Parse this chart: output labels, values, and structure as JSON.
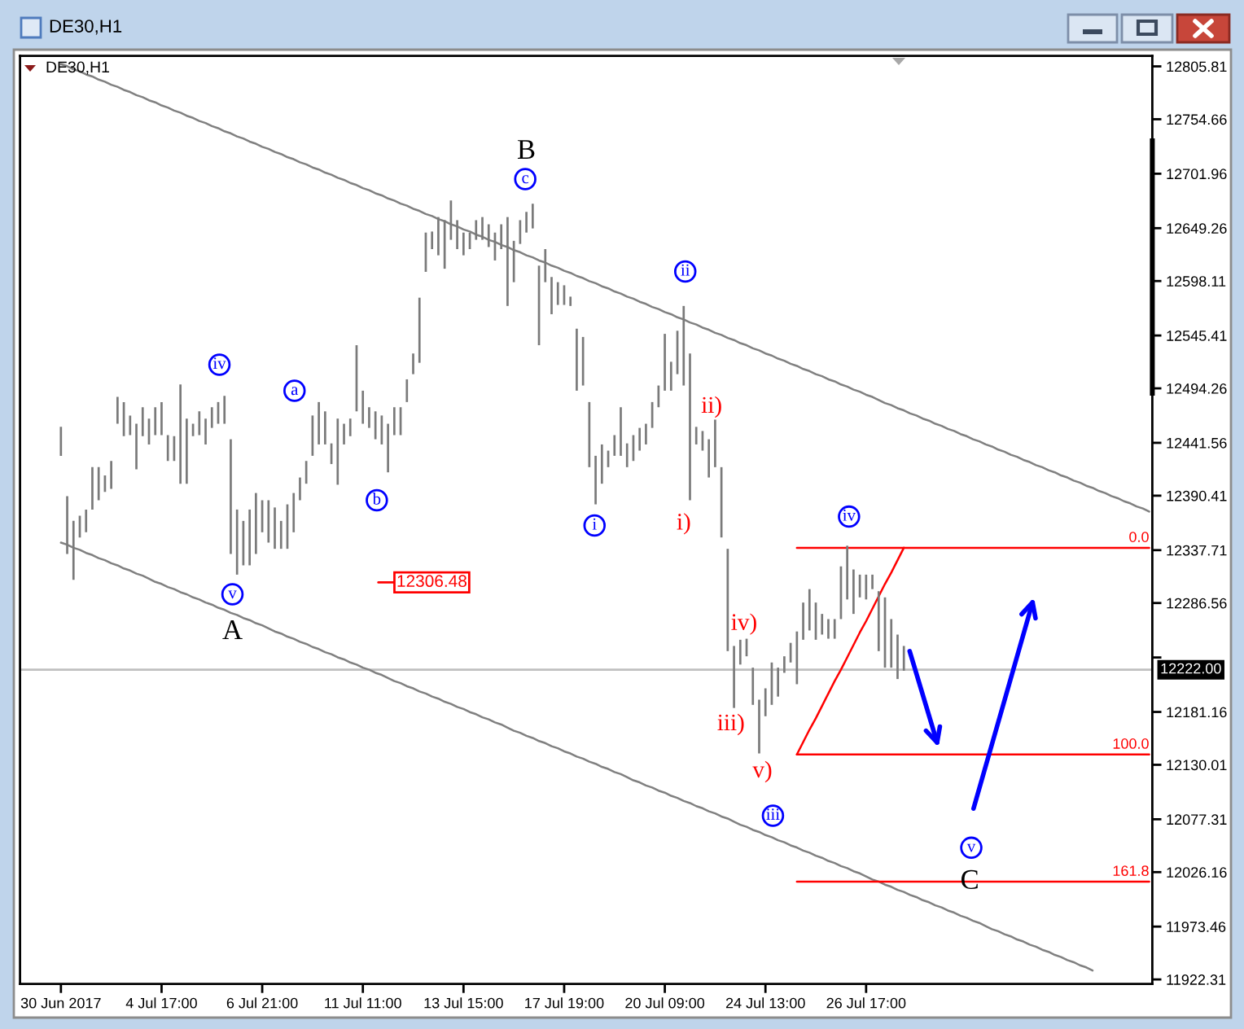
{
  "chart_data": {
    "type": "bar",
    "title": "DE30,H1",
    "subtitle": "DE30,H1",
    "categories": [
      "30 Jun 2017",
      null,
      null,
      null,
      null,
      null,
      null,
      null,
      null,
      null,
      null,
      null,
      null,
      null,
      null,
      null,
      "4 Jul 17:00",
      null,
      null,
      null,
      null,
      null,
      null,
      null,
      null,
      null,
      null,
      null,
      null,
      null,
      null,
      null,
      "6 Jul 21:00",
      null,
      null,
      null,
      null,
      null,
      null,
      null,
      null,
      null,
      null,
      null,
      null,
      null,
      null,
      null,
      "11 Jul 11:00",
      null,
      null,
      null,
      null,
      null,
      null,
      null,
      null,
      null,
      null,
      null,
      null,
      null,
      null,
      null,
      "13 Jul 15:00",
      null,
      null,
      null,
      null,
      null,
      null,
      null,
      null,
      null,
      null,
      null,
      null,
      null,
      null,
      null,
      "17 Jul 19:00",
      null,
      null,
      null,
      null,
      null,
      null,
      null,
      null,
      null,
      null,
      null,
      null,
      null,
      null,
      null,
      "20 Jul 09:00",
      null,
      null,
      null,
      null,
      null,
      null,
      null,
      null,
      null,
      null,
      null,
      null,
      null,
      null,
      null,
      "24 Jul 13:00",
      null,
      null,
      null,
      null,
      null,
      null,
      null,
      null,
      null,
      null,
      null,
      null,
      null,
      null,
      null,
      "26 Jul 17:00",
      null,
      null,
      null,
      null,
      null,
      null,
      null,
      null,
      null,
      null,
      null,
      null,
      null,
      null,
      null,
      null,
      null,
      null,
      null,
      null,
      null,
      null,
      null,
      null,
      null,
      null,
      null,
      null,
      null,
      null,
      null,
      null,
      null,
      null,
      null,
      null,
      null,
      null,
      null,
      null,
      null,
      null,
      null,
      null,
      null
    ],
    "series": [
      {
        "color": "#7a7a7a",
        "base": [
          12429,
          12334,
          12309,
          12350,
          12355,
          12377,
          12386,
          12394,
          12397,
          12460,
          12448,
          12449,
          12416,
          12448,
          12440,
          12449,
          12449,
          12424,
          12424,
          12402,
          12402,
          12448,
          12449,
          12440,
          12456,
          12460,
          12460,
          12334,
          12314,
          12323,
          12323,
          12334,
          12355,
          12345,
          12339,
          12339,
          12339,
          12355,
          12386,
          12402,
          12429,
          12440,
          12440,
          12421,
          12401,
          12440,
          12448,
          12472,
          12460,
          12456,
          12445,
          12440,
          12413,
          12449,
          12449,
          12481,
          12508,
          12519,
          12607,
          12629,
          12623,
          12610,
          12638,
          12629,
          12623,
          12629,
          12638,
          12638,
          12631,
          12618,
          12629,
          12574,
          12597,
          12634,
          12645,
          12649,
          12536,
          12597,
          12566,
          12575,
          12575,
          12574,
          12492,
          12497,
          12418,
          12382,
          12402,
          12418,
          12429,
          12429,
          12418,
          12424,
          12434,
          12440,
          12456,
          12476,
          12492,
          12492,
          12508,
          12497,
          12386,
          12440,
          12434,
          12408,
          12418,
          12350,
          12240,
          12185,
          12227,
          12235,
          12188,
          12141,
          12177,
          12188,
          12196,
          12219,
          12229,
          12208,
          12251,
          12260,
          12251,
          12256,
          12252,
          12252,
          12271,
          12290,
          12276,
          12292,
          12290,
          12300,
          12240,
          12224,
          12224,
          12213,
          12221,
          null,
          null,
          null,
          null,
          null,
          null,
          null,
          null,
          null,
          null,
          null,
          null,
          null,
          null,
          null,
          null,
          null,
          null,
          null,
          null,
          null,
          null,
          null,
          null,
          null,
          null,
          null,
          null,
          null,
          null,
          null,
          null,
          null,
          null,
          null,
          null,
          null,
          null,
          null
        ],
        "values": [
          28,
          56,
          57,
          21,
          22,
          41,
          32,
          16,
          27,
          26,
          33,
          19,
          44,
          28,
          25,
          27,
          32,
          25,
          24,
          96,
          63,
          12,
          23,
          25,
          20,
          21,
          27,
          111,
          63,
          43,
          54,
          59,
          31,
          41,
          40,
          27,
          43,
          38,
          22,
          22,
          39,
          41,
          32,
          20,
          64,
          20,
          17,
          64,
          32,
          20,
          27,
          28,
          47,
          27,
          27,
          22,
          20,
          63,
          38,
          17,
          37,
          47,
          38,
          28,
          22,
          16,
          19,
          22,
          22,
          27,
          24,
          86,
          40,
          23,
          20,
          24,
          77,
          32,
          36,
          22,
          19,
          9,
          60,
          47,
          63,
          47,
          38,
          16,
          20,
          47,
          23,
          25,
          22,
          20,
          25,
          21,
          55,
          28,
          42,
          77,
          142,
          17,
          19,
          37,
          46,
          68,
          99,
          60,
          24,
          17,
          36,
          52,
          27,
          41,
          28,
          16,
          19,
          51,
          36,
          40,
          36,
          20,
          19,
          19,
          51,
          52,
          43,
          22,
          24,
          14,
          58,
          68,
          47,
          43,
          24,
          null,
          null,
          null,
          null,
          null,
          null,
          null,
          null,
          null,
          null,
          null,
          null,
          null,
          null,
          null,
          null,
          null,
          null,
          null,
          null,
          null,
          null,
          null,
          null,
          null,
          null,
          null,
          null,
          null,
          null,
          null,
          null,
          null,
          null,
          null,
          null,
          null,
          null,
          null
        ]
      },
      {
        "type": "line",
        "color": "#808080",
        "values": [
          12808,
          12806,
          12803,
          12801,
          12798,
          12796,
          12793,
          12791,
          12788,
          12786,
          12783,
          12781,
          12778,
          12776,
          12773,
          12771,
          12768,
          12766,
          12763,
          12761,
          12758,
          12756,
          12753,
          12751,
          12748,
          12746,
          12743,
          12741,
          12738,
          12736,
          12733,
          12731,
          12728,
          12726,
          12723,
          12721,
          12718,
          12716,
          12713,
          12711,
          12708,
          12706,
          12703,
          12701,
          12698,
          12696,
          12693,
          12691,
          12688,
          12686,
          12683,
          12681,
          12678,
          12676,
          12673,
          12671,
          12668,
          12666,
          12663,
          12661,
          12658,
          12656,
          12653,
          12651,
          12648,
          12646,
          12643,
          12641,
          12638,
          12636,
          12633,
          12631,
          12628,
          12626,
          12623,
          12621,
          12618,
          12616,
          12613,
          12611,
          12608,
          12606,
          12603,
          12601,
          12598,
          12596,
          12593,
          12591,
          12588,
          12586,
          12583,
          12581,
          12578,
          12576,
          12573,
          12571,
          12568,
          12566,
          12563,
          12561,
          12558,
          12556,
          12553,
          12551,
          12548,
          12546,
          12543,
          12541,
          12538,
          12536,
          12533,
          12531,
          12528,
          12526,
          12523,
          12521,
          12518,
          12516,
          12513,
          12511,
          12508,
          12506,
          12503,
          12501,
          12498,
          12496,
          12493,
          12491,
          12488,
          12486,
          12483,
          12480,
          12478,
          12475,
          12473,
          12470,
          12468,
          12465,
          12463,
          12460,
          12458,
          12455,
          12453,
          12450,
          12448,
          12445,
          12443,
          12440,
          12438,
          12435,
          12433,
          12430,
          12428,
          12425,
          12423,
          12420,
          12418,
          12415,
          12413,
          12410,
          12408,
          12405,
          12403,
          12400,
          12398,
          12395,
          12393,
          12390,
          12388,
          12385,
          12383,
          12380,
          12378,
          12375
        ]
      },
      {
        "type": "line",
        "color": "#808080",
        "values": [
          12345,
          12343,
          12340,
          12338,
          12335,
          12333,
          12330,
          12328,
          12325,
          12323,
          12320,
          12318,
          12315,
          12313,
          12310,
          12307,
          12305,
          12302,
          12300,
          12297,
          12295,
          12292,
          12290,
          12287,
          12285,
          12282,
          12280,
          12277,
          12275,
          12272,
          12270,
          12267,
          12265,
          12262,
          12259,
          12257,
          12254,
          12252,
          12249,
          12247,
          12244,
          12242,
          12239,
          12237,
          12234,
          12232,
          12229,
          12227,
          12224,
          12222,
          12219,
          12217,
          12214,
          12211,
          12209,
          12206,
          12204,
          12201,
          12199,
          12196,
          12194,
          12191,
          12189,
          12186,
          12184,
          12181,
          12179,
          12176,
          12174,
          12171,
          12169,
          12166,
          12163,
          12161,
          12158,
          12156,
          12153,
          12151,
          12148,
          12146,
          12143,
          12141,
          12138,
          12136,
          12133,
          12131,
          12128,
          12126,
          12123,
          12121,
          12118,
          12115,
          12113,
          12110,
          12108,
          12105,
          12103,
          12100,
          12098,
          12095,
          12093,
          12090,
          12088,
          12085,
          12083,
          12080,
          12078,
          12075,
          12072,
          12070,
          12067,
          12065,
          12062,
          12060,
          12057,
          12055,
          12052,
          12050,
          12047,
          12045,
          12042,
          12040,
          12037,
          12035,
          12032,
          12030,
          12027,
          12025,
          12022,
          12019,
          12017,
          12014,
          12012,
          12009,
          12007,
          12004,
          12002,
          11999,
          11997,
          11994,
          11992,
          11989,
          11987,
          11984,
          11982,
          11979,
          11977,
          11974,
          11971,
          11969,
          11966,
          11964,
          11961,
          11959,
          11956,
          11954,
          11951,
          11949,
          11946,
          11944,
          11941,
          11939,
          11936,
          11934,
          11931,
          null,
          null,
          null,
          null,
          null,
          null,
          null,
          null,
          null
        ]
      },
      {
        "type": "line",
        "name": "0.0",
        "color": "#ff0000",
        "values": [
          null,
          null,
          null,
          null,
          null,
          null,
          null,
          null,
          null,
          null,
          null,
          null,
          null,
          null,
          null,
          null,
          null,
          null,
          null,
          null,
          null,
          null,
          null,
          null,
          null,
          null,
          null,
          null,
          null,
          null,
          null,
          null,
          null,
          null,
          null,
          null,
          null,
          null,
          null,
          null,
          null,
          null,
          null,
          null,
          null,
          null,
          null,
          null,
          null,
          null,
          null,
          null,
          null,
          null,
          null,
          null,
          null,
          null,
          null,
          null,
          null,
          null,
          null,
          null,
          null,
          null,
          null,
          null,
          null,
          null,
          null,
          null,
          null,
          null,
          null,
          null,
          null,
          null,
          null,
          null,
          null,
          null,
          null,
          null,
          null,
          null,
          null,
          null,
          null,
          null,
          null,
          null,
          null,
          null,
          null,
          null,
          null,
          null,
          null,
          null,
          null,
          null,
          null,
          null,
          null,
          null,
          null,
          null,
          null,
          null,
          null,
          null,
          null,
          null,
          null,
          null,
          null,
          12340,
          12340,
          12340,
          12340,
          12340,
          12340,
          12340,
          12340,
          12340,
          12340,
          12340,
          12340,
          12340,
          12340,
          12340,
          12340,
          12340,
          12340,
          12340,
          12340,
          12340,
          12340,
          12340,
          12340,
          12340,
          12340,
          12340,
          12340,
          12340,
          12340,
          12340,
          12340,
          12340,
          12340,
          12340,
          12340,
          12340,
          12340,
          12340,
          12340,
          12340,
          12340,
          12340,
          12340,
          12340,
          12340,
          12340,
          12340,
          12340,
          12340,
          12340,
          12340,
          12340,
          12340,
          12340,
          12340,
          12340
        ]
      },
      {
        "type": "line",
        "name": "100.0",
        "color": "#ff0000",
        "values": [
          null,
          null,
          null,
          null,
          null,
          null,
          null,
          null,
          null,
          null,
          null,
          null,
          null,
          null,
          null,
          null,
          null,
          null,
          null,
          null,
          null,
          null,
          null,
          null,
          null,
          null,
          null,
          null,
          null,
          null,
          null,
          null,
          null,
          null,
          null,
          null,
          null,
          null,
          null,
          null,
          null,
          null,
          null,
          null,
          null,
          null,
          null,
          null,
          null,
          null,
          null,
          null,
          null,
          null,
          null,
          null,
          null,
          null,
          null,
          null,
          null,
          null,
          null,
          null,
          null,
          null,
          null,
          null,
          null,
          null,
          null,
          null,
          null,
          null,
          null,
          null,
          null,
          null,
          null,
          null,
          null,
          null,
          null,
          null,
          null,
          null,
          null,
          null,
          null,
          null,
          null,
          null,
          null,
          null,
          null,
          null,
          null,
          null,
          null,
          null,
          null,
          null,
          null,
          null,
          null,
          null,
          null,
          null,
          null,
          null,
          null,
          null,
          null,
          null,
          null,
          null,
          null,
          12140,
          12140,
          12140,
          12140,
          12140,
          12140,
          12140,
          12140,
          12140,
          12140,
          12140,
          12140,
          12140,
          12140,
          12140,
          12140,
          12140,
          12140,
          12140,
          12140,
          12140,
          12140,
          12140,
          12140,
          12140,
          12140,
          12140,
          12140,
          12140,
          12140,
          12140,
          12140,
          12140,
          12140,
          12140,
          12140,
          12140,
          12140,
          12140,
          12140,
          12140,
          12140,
          12140,
          12140,
          12140,
          12140,
          12140,
          12140,
          12140,
          12140,
          12140,
          12140,
          12140,
          12140,
          12140,
          12140,
          12140
        ]
      },
      {
        "type": "line",
        "name": "161.8",
        "color": "#ff0000",
        "values": [
          null,
          null,
          null,
          null,
          null,
          null,
          null,
          null,
          null,
          null,
          null,
          null,
          null,
          null,
          null,
          null,
          null,
          null,
          null,
          null,
          null,
          null,
          null,
          null,
          null,
          null,
          null,
          null,
          null,
          null,
          null,
          null,
          null,
          null,
          null,
          null,
          null,
          null,
          null,
          null,
          null,
          null,
          null,
          null,
          null,
          null,
          null,
          null,
          null,
          null,
          null,
          null,
          null,
          null,
          null,
          null,
          null,
          null,
          null,
          null,
          null,
          null,
          null,
          null,
          null,
          null,
          null,
          null,
          null,
          null,
          null,
          null,
          null,
          null,
          null,
          null,
          null,
          null,
          null,
          null,
          null,
          null,
          null,
          null,
          null,
          null,
          null,
          null,
          null,
          null,
          null,
          null,
          null,
          null,
          null,
          null,
          null,
          null,
          null,
          null,
          null,
          null,
          null,
          null,
          null,
          null,
          null,
          null,
          null,
          null,
          null,
          null,
          null,
          null,
          null,
          null,
          null,
          12017,
          12017,
          12017,
          12017,
          12017,
          12017,
          12017,
          12017,
          12017,
          12017,
          12017,
          12017,
          12017,
          12017,
          12017,
          12017,
          12017,
          12017,
          12017,
          12017,
          12017,
          12017,
          12017,
          12017,
          12017,
          12017,
          12017,
          12017,
          12017,
          12017,
          12017,
          12017,
          12017,
          12017,
          12017,
          12017,
          12017,
          12017,
          12017,
          12017,
          12017,
          12017,
          12017,
          12017,
          12017,
          12017,
          12017,
          12017,
          12017,
          12017,
          12017,
          12017,
          12017,
          12017,
          12017,
          12017,
          12017
        ]
      },
      {
        "type": "line",
        "color": "#ff0000",
        "values": [
          null,
          null,
          null,
          null,
          null,
          null,
          null,
          null,
          null,
          null,
          null,
          null,
          null,
          null,
          null,
          null,
          null,
          null,
          null,
          null,
          null,
          null,
          null,
          null,
          null,
          null,
          null,
          null,
          null,
          null,
          null,
          null,
          null,
          null,
          null,
          null,
          null,
          null,
          null,
          null,
          null,
          null,
          null,
          null,
          null,
          null,
          null,
          null,
          null,
          null,
          null,
          null,
          null,
          null,
          null,
          null,
          null,
          null,
          null,
          null,
          null,
          null,
          null,
          null,
          null,
          null,
          null,
          null,
          null,
          null,
          null,
          null,
          null,
          null,
          null,
          null,
          null,
          null,
          null,
          null,
          null,
          null,
          null,
          null,
          null,
          null,
          null,
          null,
          null,
          null,
          null,
          null,
          null,
          null,
          null,
          null,
          null,
          null,
          null,
          null,
          null,
          null,
          null,
          null,
          null,
          null,
          null,
          null,
          null,
          null,
          null,
          null,
          null,
          null,
          null,
          null,
          null,
          12140,
          12152,
          12164,
          12175,
          12187,
          12199,
          12211,
          12222,
          12234,
          12246,
          12258,
          12269,
          12281,
          12293,
          12305,
          12316,
          12328,
          12340,
          null,
          null,
          null,
          null,
          null,
          null,
          null,
          null,
          null,
          null,
          null,
          null,
          null,
          null,
          null,
          null,
          null,
          null,
          null,
          null,
          null,
          null,
          null,
          null,
          null,
          null,
          null,
          null,
          null,
          null,
          null,
          null,
          null,
          null,
          null,
          null,
          null,
          null,
          null
        ]
      }
    ],
    "ylim": [
      11918,
      12816
    ],
    "yticks": [
      12805.81,
      12754.66,
      12701.96,
      12649.26,
      12598.11,
      12545.41,
      12494.26,
      12441.56,
      12390.41,
      12337.71,
      12286.56,
      {
        "value": 12233.86,
        "label": null
      },
      12181.16,
      12130.01,
      12077.31,
      12026.16,
      11973.46,
      11922.31
    ],
    "ref_lines": [
      {
        "axis": "y",
        "value": 12222,
        "label": "12222.00",
        "color": "#c0c0c0"
      }
    ],
    "annotations": [
      "iv",
      "v",
      "a",
      "b",
      "c",
      "i",
      "ii",
      "iii",
      "iv",
      "v",
      "i)",
      "ii)",
      "iii)",
      "iv)",
      "v)",
      "A",
      "B",
      "C",
      "12306.48"
    ]
  }
}
